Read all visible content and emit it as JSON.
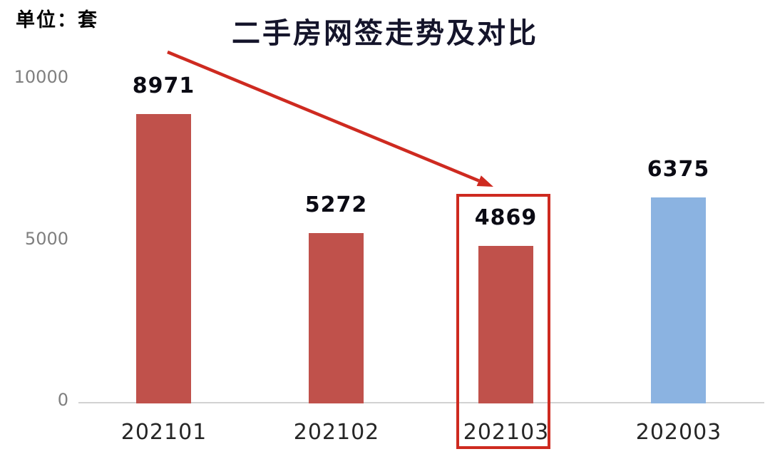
{
  "unit_label": "单位：套",
  "title": "二手房网签走势及对比",
  "colors": {
    "bar_red": "#c0514b",
    "bar_blue": "#8bb3e1",
    "annotation_red": "#ce2a20",
    "axis_line_gray": "#d2d2d2",
    "tick_text_gray": "#7f7f7f",
    "title_text": "#15152b",
    "value_text": "#0b0b14"
  },
  "chart_data": {
    "type": "bar",
    "title": "二手房网签走势及对比",
    "ylabel": "单位：套",
    "categories": [
      "202101",
      "202102",
      "202103",
      "202003"
    ],
    "values": [
      8971,
      5272,
      4869,
      6375
    ],
    "bar_colors": [
      "#c0514b",
      "#c0514b",
      "#c0514b",
      "#8bb3e1"
    ],
    "ylim": [
      0,
      10000
    ],
    "yticks": [
      0,
      5000,
      10000
    ],
    "grid": false,
    "legend": false,
    "highlighted_category": "202103",
    "annotations": [
      "red arrow pointing from below title down-right to the 202103 bar",
      "red rectangle outline around the 202103 bar, its value label and category label"
    ]
  }
}
